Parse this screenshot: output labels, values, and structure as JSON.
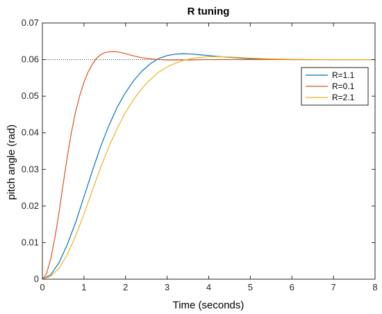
{
  "chart_data": {
    "type": "line",
    "title": "R tuning",
    "xlabel": "Time (seconds)",
    "ylabel": "pitch angle (rad)",
    "xlim": [
      0,
      8
    ],
    "ylim": [
      0,
      0.07
    ],
    "xticks": [
      "0",
      "1",
      "2",
      "3",
      "4",
      "5",
      "6",
      "7",
      "8"
    ],
    "yticks": [
      "0",
      "0.01",
      "0.02",
      "0.03",
      "0.04",
      "0.05",
      "0.06",
      "0.07"
    ],
    "grid": false,
    "legend_position": "top-right",
    "reference_line": {
      "y": 0.06,
      "style": "dotted"
    },
    "series": [
      {
        "name": "R=1.1",
        "color": "#0072BD",
        "x": [
          0,
          0.2,
          0.4,
          0.6,
          0.8,
          1.0,
          1.2,
          1.4,
          1.6,
          1.8,
          2.0,
          2.2,
          2.4,
          2.6,
          2.8,
          3.0,
          3.2,
          3.4,
          3.6,
          3.8,
          4.0,
          4.5,
          5.0,
          5.5,
          6.0,
          7.0,
          8.0
        ],
        "y": [
          0,
          0.0012,
          0.0045,
          0.0095,
          0.0155,
          0.0225,
          0.0295,
          0.0362,
          0.042,
          0.047,
          0.051,
          0.0543,
          0.0569,
          0.0589,
          0.0603,
          0.0611,
          0.0615,
          0.0616,
          0.0615,
          0.0613,
          0.0611,
          0.0606,
          0.0602,
          0.0601,
          0.06,
          0.06,
          0.06
        ]
      },
      {
        "name": "R=0.1",
        "color": "#D95319",
        "x": [
          0,
          0.1,
          0.2,
          0.3,
          0.4,
          0.5,
          0.6,
          0.7,
          0.8,
          0.9,
          1.0,
          1.1,
          1.2,
          1.3,
          1.4,
          1.5,
          1.6,
          1.7,
          1.8,
          1.9,
          2.0,
          2.2,
          2.4,
          2.6,
          2.8,
          3.0,
          3.5,
          4.0,
          5.0,
          6.0,
          8.0
        ],
        "y": [
          0,
          0.0015,
          0.0055,
          0.0112,
          0.0182,
          0.026,
          0.0335,
          0.0402,
          0.0458,
          0.0502,
          0.0538,
          0.0566,
          0.0587,
          0.0603,
          0.0613,
          0.0619,
          0.0621,
          0.0622,
          0.0621,
          0.0619,
          0.0616,
          0.061,
          0.0605,
          0.0602,
          0.06,
          0.0599,
          0.0599,
          0.06,
          0.06,
          0.06,
          0.06
        ]
      },
      {
        "name": "R=2.1",
        "color": "#EDB120",
        "x": [
          0,
          0.2,
          0.4,
          0.6,
          0.8,
          1.0,
          1.2,
          1.4,
          1.6,
          1.8,
          2.0,
          2.2,
          2.4,
          2.6,
          2.8,
          3.0,
          3.2,
          3.4,
          3.6,
          3.8,
          4.0,
          4.2,
          4.5,
          5.0,
          5.5,
          6.0,
          7.0,
          8.0
        ],
        "y": [
          0,
          0.0008,
          0.003,
          0.0068,
          0.0118,
          0.0178,
          0.0242,
          0.0305,
          0.0362,
          0.0412,
          0.0456,
          0.0492,
          0.0522,
          0.0546,
          0.0566,
          0.058,
          0.059,
          0.0598,
          0.0603,
          0.0606,
          0.0608,
          0.0608,
          0.0607,
          0.0604,
          0.0602,
          0.0601,
          0.06,
          0.06
        ]
      }
    ]
  }
}
